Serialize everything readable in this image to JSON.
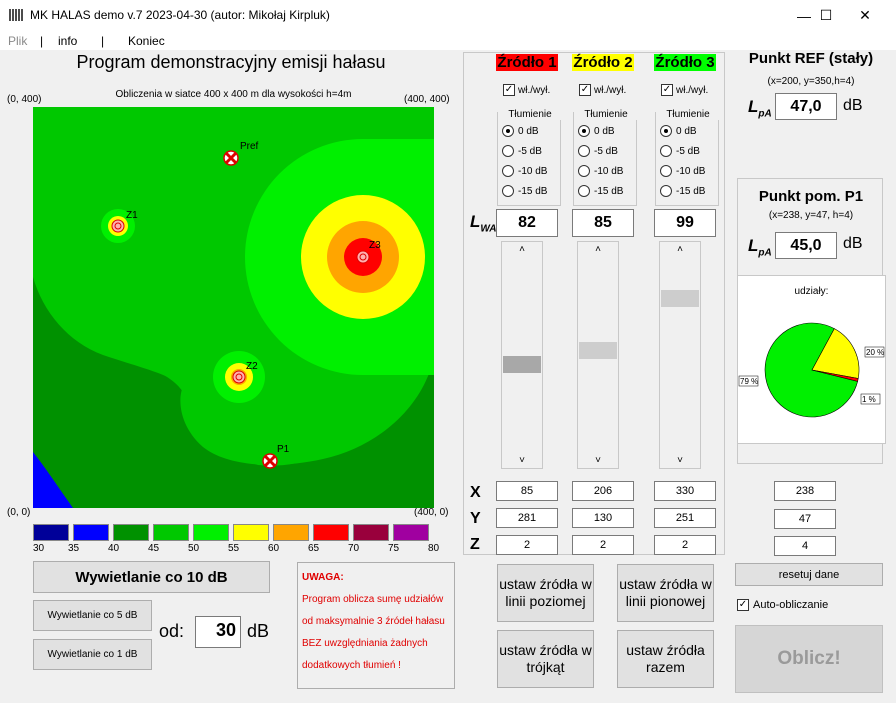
{
  "window": {
    "title": "MK HALAS demo v.7 2023-04-30 (autor: Mikołaj Kirpluk)",
    "minimize": "—",
    "maximize": "☐",
    "close": "✕"
  },
  "menu": {
    "items": [
      "Plik",
      "info",
      "Koniec"
    ],
    "separator": "|"
  },
  "map": {
    "title": "Program demonstracyjny emisji hałasu",
    "caption": "Obliczenia w siatce 400 x 400 m dla wysokości h=4m",
    "corner_tl": "(0, 400)",
    "corner_tr": "(400, 400)",
    "corner_bl": "(0, 0)",
    "corner_br": "(400, 0)",
    "markers": {
      "pref": "Pref",
      "z1": "Z1",
      "z2": "Z2",
      "z3": "Z3",
      "p1": "P1"
    }
  },
  "legend": {
    "values": [
      "30",
      "35",
      "40",
      "45",
      "50",
      "55",
      "60",
      "65",
      "70",
      "75",
      "80"
    ],
    "colors": [
      "#000099",
      "#0000ff",
      "#009100",
      "#00c800",
      "#00f000",
      "#ffff00",
      "#ffa500",
      "#ff0000",
      "#99003c",
      "#a000a0"
    ]
  },
  "display": {
    "btn_10db": "Wywietlanie co 10 dB",
    "btn_5db": "Wywietlanie co 5 dB",
    "btn_1db": "Wywietlanie co 1 dB",
    "od_label": "od:",
    "od_value": "30",
    "od_unit": "dB"
  },
  "warning": {
    "lines": [
      "UWAGA:",
      "Program oblicza sumę udziałów",
      "od maksymalnie 3 źródeł hałasu",
      "BEZ uwzględniania żadnych",
      "dodatkowych tłumień !"
    ]
  },
  "sources": {
    "titles": [
      "Źródło 1",
      "Źródło 2",
      "Źródło 3"
    ],
    "title_colors": [
      "#ff0000",
      "#ffff00",
      "#00ff00"
    ],
    "onoff_label": "wł./wył.",
    "onoff_checked": [
      true,
      true,
      true
    ],
    "attenuation_title": "Tłumienie",
    "attenuation_options": [
      "0 dB",
      "-5 dB",
      "-10 dB",
      "-15 dB"
    ],
    "attenuation_selected": [
      "0 dB",
      "0 dB",
      "0 dB"
    ],
    "lwa_label": "L",
    "lwa_sub": "WA",
    "lwa_values": [
      "82",
      "85",
      "99"
    ],
    "slider_up": "˄",
    "slider_down": "˅",
    "slider_levels": [
      0.45,
      0.53,
      0.82
    ],
    "x_label": "X",
    "y_label": "Y",
    "z_label": "Z",
    "x": [
      "85",
      "206",
      "330"
    ],
    "y": [
      "281",
      "130",
      "251"
    ],
    "z": [
      "2",
      "2",
      "2"
    ]
  },
  "ref_point": {
    "title": "Punkt REF (stały)",
    "subtitle": "(x=200, y=350,h=4)",
    "lpa_label": "L",
    "lpa_sub": "pA",
    "lpa_value": "47,0",
    "unit": "dB"
  },
  "p1_point": {
    "title": "Punkt pom. P1",
    "subtitle": "(x=238, y=47, h=4)",
    "lpa_label": "L",
    "lpa_sub": "pA",
    "lpa_value": "45,0",
    "unit": "dB",
    "x": "238",
    "y": "47",
    "z": "4"
  },
  "chart_data": {
    "type": "pie",
    "title": "udziały:",
    "categories": [
      "Źródło 3",
      "Źródło 2",
      "Źródło 1"
    ],
    "values": [
      79,
      20,
      1
    ],
    "labels": [
      "79 %",
      "20 %",
      "1 %"
    ],
    "colors": [
      "#00f000",
      "#ffff00",
      "#ff0000"
    ]
  },
  "layout_buttons": {
    "horizontal": "ustaw źródła w linii poziomej",
    "vertical": "ustaw źródła w linii pionowej",
    "triangle": "ustaw źródła w trójkąt",
    "together": "ustaw źródła razem"
  },
  "controls": {
    "reset": "resetuj dane",
    "auto_calc": "Auto-obliczanie",
    "auto_calc_checked": true,
    "calc": "Oblicz!"
  }
}
